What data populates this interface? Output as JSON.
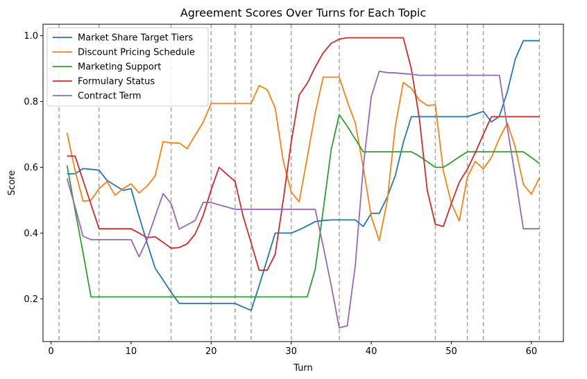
{
  "chart_data": {
    "type": "line",
    "title": "Agreement Scores Over Turns for Each Topic",
    "xlabel": "Turn",
    "ylabel": "Score",
    "xlim": [
      -1,
      64
    ],
    "ylim": [
      0.07,
      1.035
    ],
    "xticks": [
      "0",
      "10",
      "20",
      "30",
      "40",
      "50",
      "60"
    ],
    "yticks": [
      "0.2",
      "0.4",
      "0.6",
      "0.8",
      "1.0"
    ],
    "legend_position": "upper-left",
    "vertical_markers": [
      1,
      6,
      15,
      20,
      23,
      25,
      30,
      36,
      48,
      52,
      54,
      61
    ],
    "series": [
      {
        "name": "Market Share Target Tiers",
        "color": "#1f77b4",
        "x": [
          2,
          3,
          4,
          5,
          6,
          7,
          8,
          9,
          10,
          11,
          12,
          13,
          14,
          15,
          16,
          17,
          18,
          19,
          20,
          21,
          22,
          23,
          24,
          25,
          26,
          27,
          28,
          29,
          30,
          31,
          32,
          33,
          34,
          35,
          36,
          37,
          38,
          39,
          40,
          41,
          42,
          43,
          44,
          45,
          46,
          47,
          48,
          49,
          50,
          51,
          52,
          53,
          54,
          55,
          56,
          57,
          58,
          59,
          60,
          61
        ],
        "y": [
          0.58,
          0.58,
          0.596,
          0.594,
          0.591,
          0.56,
          0.545,
          0.53,
          0.535,
          0.45,
          0.37,
          0.294,
          0.257,
          0.22,
          0.186,
          0.186,
          0.186,
          0.186,
          0.186,
          0.186,
          0.186,
          0.186,
          0.175,
          0.165,
          0.24,
          0.32,
          0.4,
          0.4,
          0.4,
          0.41,
          0.422,
          0.435,
          0.438,
          0.44,
          0.44,
          0.44,
          0.44,
          0.42,
          0.46,
          0.46,
          0.51,
          0.575,
          0.675,
          0.754,
          0.754,
          0.754,
          0.754,
          0.754,
          0.754,
          0.754,
          0.754,
          0.762,
          0.77,
          0.738,
          0.755,
          0.83,
          0.93,
          0.985,
          0.985,
          0.985
        ]
      },
      {
        "name": "Discount Pricing Schedule",
        "color": "#ff7f0e",
        "x": [
          2,
          3,
          4,
          5,
          6,
          7,
          8,
          9,
          10,
          11,
          12,
          13,
          14,
          15,
          16,
          17,
          18,
          19,
          20,
          21,
          22,
          23,
          24,
          25,
          26,
          27,
          28,
          29,
          30,
          31,
          32,
          33,
          34,
          35,
          36,
          37,
          38,
          39,
          40,
          41,
          42,
          43,
          44,
          45,
          46,
          47,
          48,
          49,
          50,
          51,
          52,
          53,
          54,
          55,
          56,
          57,
          58,
          59,
          60,
          61
        ],
        "y": [
          0.705,
          0.59,
          0.497,
          0.5,
          0.535,
          0.557,
          0.515,
          0.535,
          0.55,
          0.522,
          0.543,
          0.573,
          0.678,
          0.674,
          0.674,
          0.657,
          0.697,
          0.737,
          0.794,
          0.794,
          0.794,
          0.794,
          0.794,
          0.794,
          0.849,
          0.836,
          0.78,
          0.62,
          0.525,
          0.495,
          0.63,
          0.765,
          0.874,
          0.874,
          0.874,
          0.8,
          0.735,
          0.6,
          0.45,
          0.377,
          0.5,
          0.725,
          0.858,
          0.84,
          0.805,
          0.788,
          0.79,
          0.59,
          0.49,
          0.437,
          0.57,
          0.618,
          0.595,
          0.63,
          0.688,
          0.735,
          0.66,
          0.548,
          0.518,
          0.568
        ]
      },
      {
        "name": "Marketing Support",
        "color": "#2ca02c",
        "x": [
          2,
          3,
          4,
          5,
          6,
          7,
          8,
          9,
          10,
          11,
          12,
          13,
          14,
          15,
          16,
          17,
          18,
          19,
          20,
          21,
          22,
          23,
          24,
          25,
          26,
          27,
          28,
          29,
          30,
          31,
          32,
          33,
          34,
          35,
          36,
          37,
          38,
          39,
          40,
          41,
          42,
          43,
          44,
          45,
          46,
          47,
          48,
          49,
          50,
          51,
          52,
          53,
          54,
          55,
          56,
          57,
          58,
          59,
          60,
          61
        ],
        "y": [
          0.606,
          0.47,
          0.34,
          0.206,
          0.206,
          0.206,
          0.206,
          0.206,
          0.206,
          0.206,
          0.206,
          0.206,
          0.206,
          0.206,
          0.206,
          0.206,
          0.206,
          0.206,
          0.206,
          0.206,
          0.206,
          0.206,
          0.206,
          0.206,
          0.206,
          0.206,
          0.206,
          0.206,
          0.206,
          0.206,
          0.206,
          0.29,
          0.47,
          0.655,
          0.76,
          0.725,
          0.686,
          0.647,
          0.647,
          0.647,
          0.647,
          0.647,
          0.647,
          0.647,
          0.634,
          0.617,
          0.6,
          0.6,
          0.615,
          0.632,
          0.647,
          0.647,
          0.647,
          0.647,
          0.647,
          0.647,
          0.647,
          0.647,
          0.63,
          0.612
        ]
      },
      {
        "name": "Formulary Status",
        "color": "#d62728",
        "x": [
          2,
          3,
          4,
          5,
          6,
          7,
          8,
          9,
          10,
          11,
          12,
          13,
          14,
          15,
          16,
          17,
          18,
          19,
          20,
          21,
          22,
          23,
          24,
          25,
          26,
          27,
          28,
          29,
          30,
          31,
          32,
          33,
          34,
          35,
          36,
          37,
          38,
          39,
          40,
          41,
          42,
          43,
          44,
          45,
          46,
          47,
          48,
          49,
          50,
          51,
          52,
          53,
          54,
          55,
          56,
          57,
          58,
          59,
          60,
          61
        ],
        "y": [
          0.634,
          0.634,
          0.56,
          0.487,
          0.413,
          0.413,
          0.413,
          0.413,
          0.413,
          0.4,
          0.386,
          0.389,
          0.372,
          0.354,
          0.356,
          0.367,
          0.397,
          0.453,
          0.532,
          0.6,
          0.578,
          0.557,
          0.45,
          0.37,
          0.287,
          0.287,
          0.335,
          0.5,
          0.677,
          0.82,
          0.855,
          0.905,
          0.948,
          0.977,
          0.99,
          0.994,
          0.994,
          0.994,
          0.994,
          0.994,
          0.994,
          0.994,
          0.994,
          0.9,
          0.75,
          0.53,
          0.427,
          0.42,
          0.49,
          0.555,
          0.594,
          0.645,
          0.7,
          0.754,
          0.754,
          0.754,
          0.754,
          0.754,
          0.754,
          0.754
        ]
      },
      {
        "name": "Contract Term",
        "color": "#9467bd",
        "x": [
          2,
          3,
          4,
          5,
          6,
          7,
          8,
          9,
          10,
          11,
          12,
          13,
          14,
          15,
          16,
          17,
          18,
          19,
          20,
          21,
          22,
          23,
          24,
          25,
          26,
          27,
          28,
          29,
          30,
          31,
          32,
          33,
          34,
          35,
          36,
          37,
          38,
          39,
          40,
          41,
          42,
          43,
          44,
          45,
          46,
          47,
          48,
          49,
          50,
          51,
          52,
          53,
          54,
          55,
          56,
          57,
          58,
          59,
          60,
          61
        ],
        "y": [
          0.566,
          0.48,
          0.39,
          0.38,
          0.38,
          0.38,
          0.38,
          0.38,
          0.38,
          0.328,
          0.38,
          0.45,
          0.52,
          0.49,
          0.412,
          0.425,
          0.438,
          0.493,
          0.493,
          0.486,
          0.479,
          0.472,
          0.472,
          0.472,
          0.472,
          0.472,
          0.472,
          0.472,
          0.472,
          0.472,
          0.472,
          0.472,
          0.36,
          0.24,
          0.112,
          0.118,
          0.3,
          0.6,
          0.815,
          0.892,
          0.888,
          0.887,
          0.885,
          0.883,
          0.88,
          0.88,
          0.88,
          0.88,
          0.88,
          0.88,
          0.88,
          0.88,
          0.88,
          0.88,
          0.88,
          0.72,
          0.57,
          0.413,
          0.413,
          0.413
        ]
      }
    ]
  }
}
